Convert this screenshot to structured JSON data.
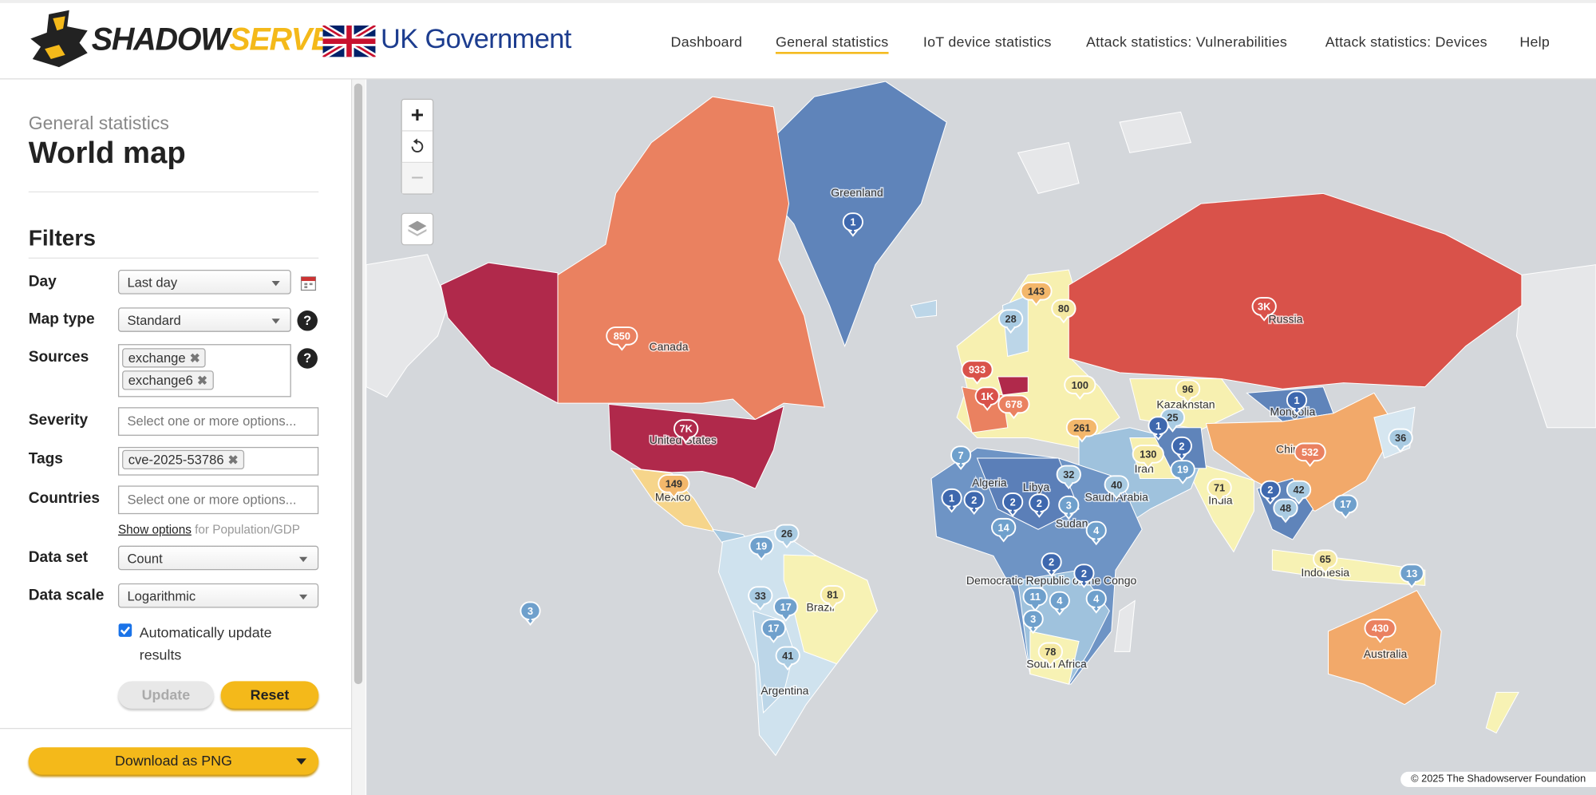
{
  "header": {
    "logo_a": "SHADOW",
    "logo_b": "SERVER",
    "partner": "UK Government",
    "nav": [
      "Dashboard",
      "General statistics",
      "IoT device statistics",
      "Attack statistics: Vulnerabilities",
      "Attack statistics: Devices",
      "Help"
    ]
  },
  "sidebar": {
    "breadcrumb": "General statistics",
    "title": "World map",
    "filters_heading": "Filters",
    "help_icon": "?",
    "remove_icon": "✖",
    "day": {
      "label": "Day",
      "value": "Last day"
    },
    "map_type": {
      "label": "Map type",
      "value": "Standard"
    },
    "sources": {
      "label": "Sources",
      "tags": [
        "exchange",
        "exchange6"
      ]
    },
    "severity": {
      "label": "Severity",
      "placeholder": "Select one or more options..."
    },
    "tags": {
      "label": "Tags",
      "tags": [
        "cve-2025-53786"
      ]
    },
    "countries": {
      "label": "Countries",
      "placeholder": "Select one or more options..."
    },
    "options_link": "Show options",
    "options_note": "for Population/GDP",
    "data_set": {
      "label": "Data set",
      "value": "Count"
    },
    "data_scale": {
      "label": "Data scale",
      "value": "Logarithmic"
    },
    "auto_update": "Automatically update results",
    "update": "Update",
    "reset": "Reset",
    "download": "Download as PNG"
  },
  "map": {
    "zoom_in": "+",
    "zoom_out": "−",
    "attribution": "© 2025 The Shadowserver Foundation",
    "country_labels": [
      "Greenland",
      "Canada",
      "United States",
      "Mexico",
      "Brazil",
      "Argentina",
      "Russia",
      "Kazakhstan",
      "Mongolia",
      "China",
      "Iran",
      "India",
      "Saudi Arabia",
      "Algeria",
      "Libya",
      "Sudan",
      "Democratic Republic of the Congo",
      "South Africa",
      "Indonesia",
      "Australia"
    ],
    "markers": [
      "1",
      "850",
      "7K",
      "149",
      "3K",
      "143",
      "80",
      "28",
      "933",
      "1K",
      "678",
      "100",
      "96",
      "25",
      "1",
      "1",
      "261",
      "130",
      "2",
      "19",
      "532",
      "36",
      "7",
      "32",
      "40",
      "71",
      "2",
      "42",
      "48",
      "17",
      "1",
      "2",
      "2",
      "2",
      "3",
      "14",
      "4",
      "26",
      "19",
      "2",
      "2",
      "65",
      "13",
      "11",
      "4",
      "4",
      "33",
      "81",
      "17",
      "3",
      "3",
      "17",
      "430",
      "78",
      "41"
    ]
  }
}
